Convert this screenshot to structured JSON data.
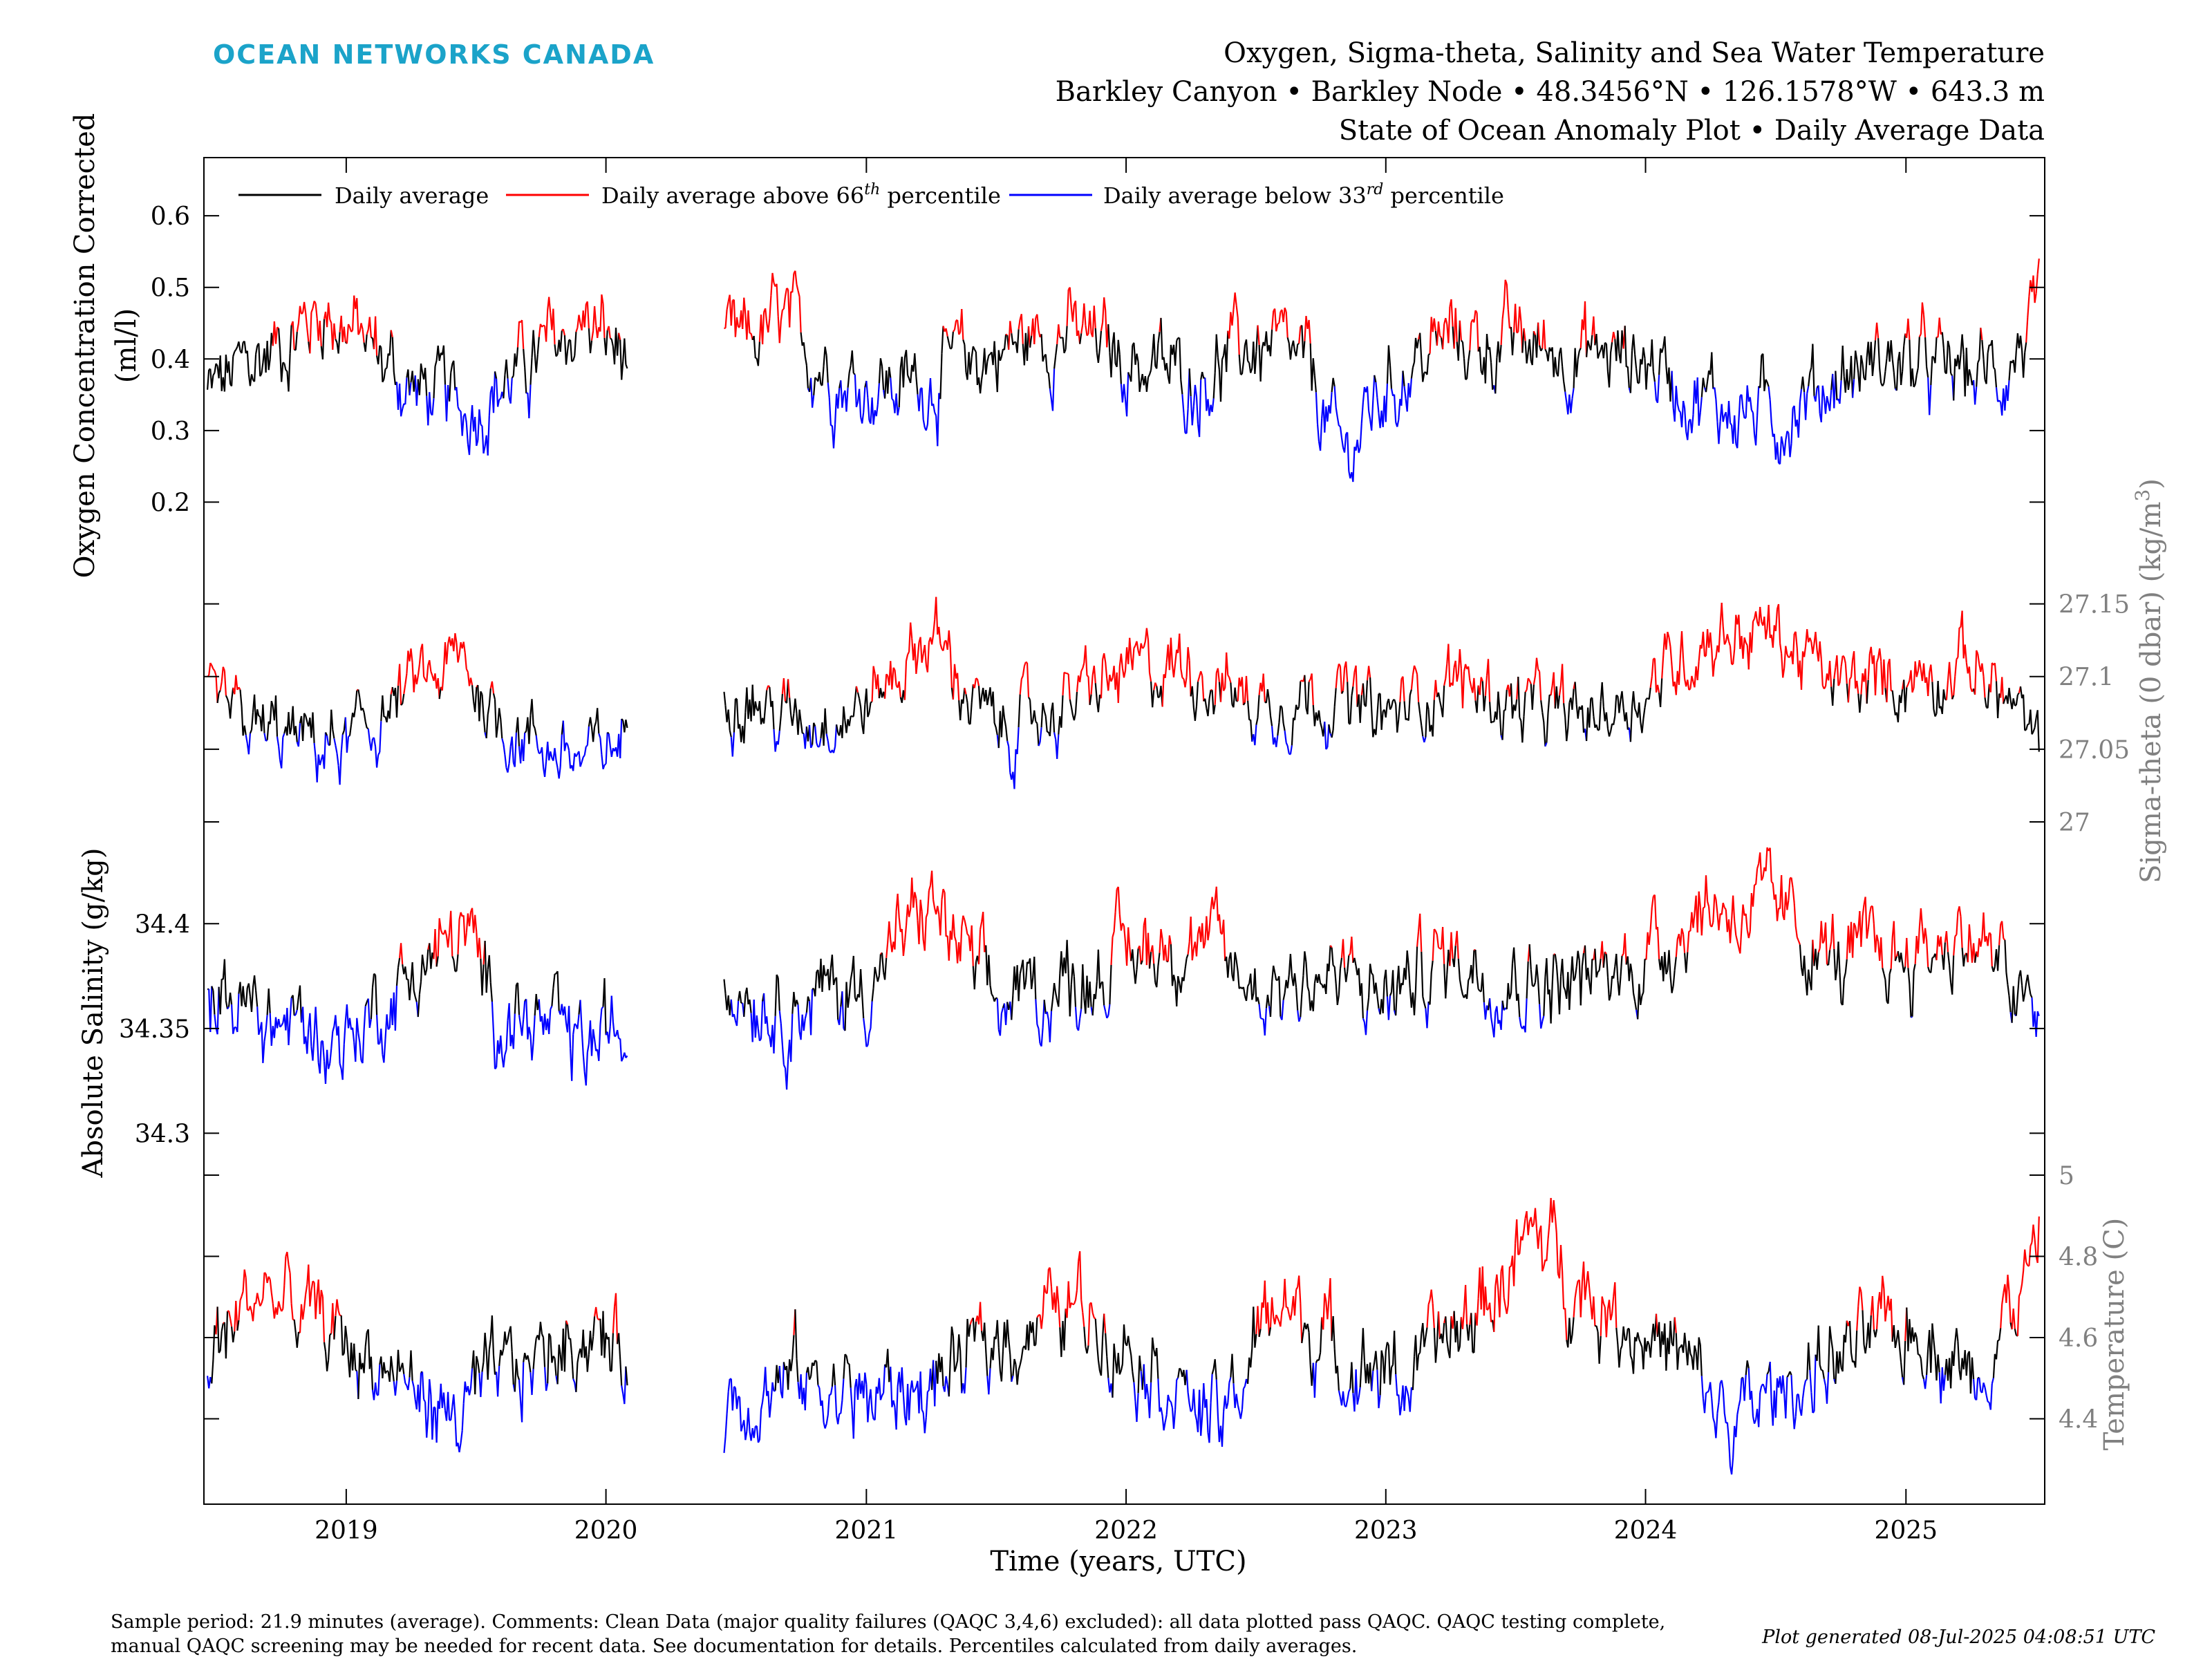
{
  "header": {
    "brand": "OCEAN NETWORKS CANADA",
    "title_line1": "Oxygen, Sigma-theta, Salinity and Sea Water Temperature",
    "title_line2": "Barkley Canyon • Barkley Node • 48.3456°N • 126.1578°W • 643.3 m",
    "title_line3": "State of Ocean Anomaly Plot • Daily Average Data"
  },
  "legend": {
    "black_label": "Daily average",
    "red_label_pre": "Daily average above 66",
    "red_label_sup": "th",
    "red_label_post": " percentile",
    "blue_label_pre": "Daily average below 33",
    "blue_label_sup": "rd",
    "blue_label_post": " percentile"
  },
  "axes": {
    "oxygen_label_line1": "Oxygen Concentration Corrected",
    "oxygen_label_line2": "(ml/l)",
    "sigma_label": "Sigma-theta (0 dbar) (kg/m",
    "sigma_label_sup": "3",
    "sigma_label_close": ")",
    "salinity_label": "Absolute Salinity (g/kg)",
    "temperature_label": "Temperature (C)",
    "x_label": "Time (years, UTC)"
  },
  "footer": {
    "note_line1": "Sample period: 21.9 minutes (average). Comments: Clean Data (major quality failures (QAQC 3,4,6) excluded): all data plotted pass QAQC. QAQC testing complete,",
    "note_line2": "manual QAQC screening may be needed for recent data. See documentation for details. Percentiles calculated from daily averages.",
    "generated": "Plot generated 08-Jul-2025 04:08:51 UTC"
  },
  "colors": {
    "average": "#000000",
    "above": "#ff0000",
    "below": "#0000ff",
    "brand": "#1ba3c9",
    "right_axis": "#808080"
  },
  "chart_data": {
    "type": "line",
    "x_axis": {
      "label": "Time (years, UTC)",
      "ticks": [
        "2019",
        "2020",
        "2021",
        "2022",
        "2023",
        "2024",
        "2025"
      ],
      "range": [
        "2018-06-15",
        "2025-07-15"
      ],
      "data_gap": [
        "2020-02-01",
        "2020-06-15"
      ]
    },
    "legend": [
      "Daily average",
      "Daily average above 66th percentile",
      "Daily average below 33rd percentile"
    ],
    "grid": false,
    "panels": [
      {
        "name": "Oxygen Concentration Corrected",
        "unit": "ml/l",
        "side": "left",
        "ylim": [
          0.1,
          0.66
        ],
        "ticks": [
          0.2,
          0.3,
          0.4,
          0.5,
          0.6
        ],
        "tick_labels": [
          "0.2",
          "0.3",
          "0.4",
          "0.5",
          "0.6"
        ],
        "p33": 0.36,
        "p66": 0.43,
        "anchors": [
          [
            "2018-06-20",
            0.35
          ],
          [
            "2018-09-01",
            0.4
          ],
          [
            "2018-12-01",
            0.47
          ],
          [
            "2019-02-01",
            0.42
          ],
          [
            "2019-04-01",
            0.36
          ],
          [
            "2019-06-15",
            0.33
          ],
          [
            "2019-09-01",
            0.38
          ],
          [
            "2019-12-01",
            0.45
          ],
          [
            "2020-02-01",
            0.4
          ],
          [
            "2020-06-15",
            0.4
          ],
          [
            "2020-09-01",
            0.45
          ],
          [
            "2020-12-01",
            0.37
          ],
          [
            "2021-03-01",
            0.36
          ],
          [
            "2021-06-01",
            0.4
          ],
          [
            "2021-10-01",
            0.44
          ],
          [
            "2022-01-01",
            0.4
          ],
          [
            "2022-04-01",
            0.37
          ],
          [
            "2022-07-01",
            0.42
          ],
          [
            "2022-09-15",
            0.38
          ],
          [
            "2022-11-01",
            0.26
          ],
          [
            "2023-01-01",
            0.36
          ],
          [
            "2023-04-01",
            0.43
          ],
          [
            "2023-07-01",
            0.42
          ],
          [
            "2023-10-01",
            0.41
          ],
          [
            "2024-01-01",
            0.4
          ],
          [
            "2024-04-01",
            0.34
          ],
          [
            "2024-07-01",
            0.32
          ],
          [
            "2024-09-01",
            0.36
          ],
          [
            "2024-12-01",
            0.4
          ],
          [
            "2025-03-01",
            0.38
          ],
          [
            "2025-05-15",
            0.38
          ],
          [
            "2025-07-08",
            0.46
          ]
        ]
      },
      {
        "name": "Sigma-theta (0 dbar)",
        "unit": "kg/m3",
        "side": "right",
        "ylim": [
          26.99,
          27.185
        ],
        "ticks": [
          27,
          27.05,
          27.1,
          27.15
        ],
        "tick_labels": [
          "27",
          "27.05",
          "27.1",
          "27.15"
        ],
        "p33": 27.06,
        "p66": 27.09,
        "anchors": [
          [
            "2018-06-20",
            27.08
          ],
          [
            "2018-09-01",
            27.06
          ],
          [
            "2019-01-01",
            27.05
          ],
          [
            "2019-04-01",
            27.09
          ],
          [
            "2019-06-15",
            27.11
          ],
          [
            "2019-08-01",
            27.07
          ],
          [
            "2019-12-01",
            27.04
          ],
          [
            "2020-02-01",
            27.06
          ],
          [
            "2020-06-15",
            27.1
          ],
          [
            "2020-09-01",
            27.07
          ],
          [
            "2021-01-01",
            27.08
          ],
          [
            "2021-04-01",
            27.13
          ],
          [
            "2021-07-01",
            27.06
          ],
          [
            "2021-10-01",
            27.08
          ],
          [
            "2022-01-01",
            27.1
          ],
          [
            "2022-04-01",
            27.11
          ],
          [
            "2022-07-01",
            27.08
          ],
          [
            "2022-10-01",
            27.09
          ],
          [
            "2023-01-01",
            27.07
          ],
          [
            "2023-04-01",
            27.1
          ],
          [
            "2023-07-01",
            27.08
          ],
          [
            "2023-10-01",
            27.07
          ],
          [
            "2024-01-01",
            27.09
          ],
          [
            "2024-04-01",
            27.13
          ],
          [
            "2024-07-01",
            27.13
          ],
          [
            "2024-10-01",
            27.09
          ],
          [
            "2025-01-01",
            27.1
          ],
          [
            "2025-04-01",
            27.11
          ],
          [
            "2025-06-01",
            27.08
          ],
          [
            "2025-07-08",
            27.04
          ]
        ]
      },
      {
        "name": "Absolute Salinity",
        "unit": "g/kg",
        "side": "left",
        "ylim": [
          34.28,
          34.44
        ],
        "ticks": [
          34.3,
          34.35,
          34.4
        ],
        "tick_labels": [
          "34.3",
          "34.35",
          "34.4"
        ],
        "p33": 34.36,
        "p66": 34.385,
        "anchors": [
          [
            "2018-06-20",
            34.37
          ],
          [
            "2018-09-01",
            34.355
          ],
          [
            "2019-01-01",
            34.345
          ],
          [
            "2019-04-01",
            34.375
          ],
          [
            "2019-06-15",
            34.395
          ],
          [
            "2019-08-01",
            34.36
          ],
          [
            "2019-12-01",
            34.34
          ],
          [
            "2020-02-01",
            34.35
          ],
          [
            "2020-06-15",
            34.38
          ],
          [
            "2020-09-01",
            34.36
          ],
          [
            "2021-01-01",
            34.37
          ],
          [
            "2021-04-01",
            34.41
          ],
          [
            "2021-07-01",
            34.36
          ],
          [
            "2021-10-01",
            34.37
          ],
          [
            "2022-01-01",
            34.385
          ],
          [
            "2022-04-01",
            34.395
          ],
          [
            "2022-07-01",
            34.37
          ],
          [
            "2022-10-01",
            34.375
          ],
          [
            "2023-01-01",
            34.365
          ],
          [
            "2023-04-01",
            34.385
          ],
          [
            "2023-07-01",
            34.375
          ],
          [
            "2023-10-01",
            34.37
          ],
          [
            "2024-01-01",
            34.385
          ],
          [
            "2024-04-01",
            34.41
          ],
          [
            "2024-07-01",
            34.405
          ],
          [
            "2024-10-01",
            34.38
          ],
          [
            "2025-01-01",
            34.385
          ],
          [
            "2025-04-01",
            34.395
          ],
          [
            "2025-06-01",
            34.37
          ],
          [
            "2025-07-08",
            34.345
          ]
        ]
      },
      {
        "name": "Temperature",
        "unit": "C",
        "side": "right",
        "ylim": [
          4.2,
          5.0
        ],
        "ticks": [
          4.4,
          4.6,
          4.8,
          5
        ],
        "tick_labels": [
          "4.4",
          "4.6",
          "4.8",
          "5"
        ],
        "p33": 4.5,
        "p66": 4.63,
        "anchors": [
          [
            "2018-06-20",
            4.55
          ],
          [
            "2018-09-01",
            4.72
          ],
          [
            "2018-12-01",
            4.62
          ],
          [
            "2019-03-01",
            4.52
          ],
          [
            "2019-06-01",
            4.4
          ],
          [
            "2019-09-01",
            4.52
          ],
          [
            "2019-12-01",
            4.62
          ],
          [
            "2020-02-01",
            4.55
          ],
          [
            "2020-06-15",
            4.45
          ],
          [
            "2020-10-01",
            4.5
          ],
          [
            "2021-01-01",
            4.45
          ],
          [
            "2021-04-01",
            4.48
          ],
          [
            "2021-08-01",
            4.62
          ],
          [
            "2021-11-01",
            4.68
          ],
          [
            "2022-02-01",
            4.55
          ],
          [
            "2022-05-15",
            4.38
          ],
          [
            "2022-08-01",
            4.7
          ],
          [
            "2022-11-01",
            4.55
          ],
          [
            "2023-02-01",
            4.5
          ],
          [
            "2023-05-01",
            4.65
          ],
          [
            "2023-08-01",
            4.85
          ],
          [
            "2023-11-01",
            4.68
          ],
          [
            "2024-02-01",
            4.58
          ],
          [
            "2024-05-01",
            4.38
          ],
          [
            "2024-08-01",
            4.5
          ],
          [
            "2024-11-01",
            4.58
          ],
          [
            "2025-02-01",
            4.62
          ],
          [
            "2025-04-01",
            4.5
          ],
          [
            "2025-07-08",
            4.8
          ]
        ]
      }
    ]
  }
}
